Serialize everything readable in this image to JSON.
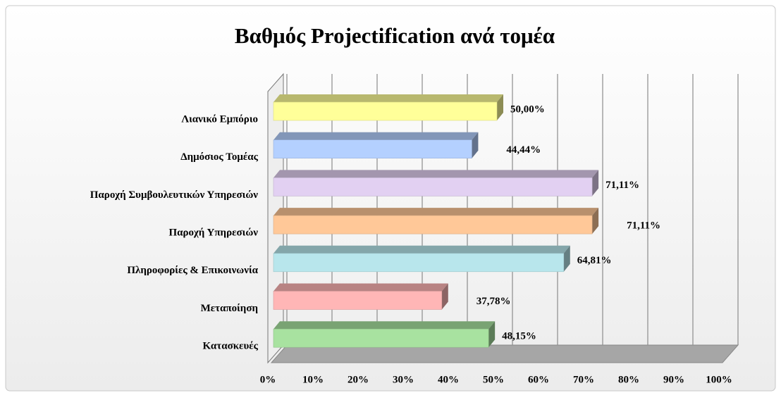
{
  "chart_data": {
    "type": "bar3d",
    "title": "Βαθμός Projectification ανά τομέα",
    "categories": [
      "Λιανικό Εμπόριο",
      "Δημόσιος Τομέας",
      "Παροχή Συμβουλευτικών Υπηρεσιών",
      "Παροχή Υπηρεσιών",
      "Πληροφορίες & Επικοινωνία",
      "Μεταποίηση",
      "Κατασκευές"
    ],
    "values": [
      50.0,
      44.44,
      71.11,
      71.11,
      64.81,
      37.78,
      48.15
    ],
    "value_labels": [
      "50,00%",
      "44,44%",
      "71,11%",
      "71,11%",
      "64,81%",
      "37,78%",
      "48,15%"
    ],
    "colors": [
      "#ffff99",
      "#b4d0ff",
      "#e2d0f2",
      "#ffc898",
      "#b8e6ec",
      "#ffb6b6",
      "#a8e2a0"
    ],
    "xlim": [
      0,
      100
    ],
    "xticks": [
      {
        "value": 0,
        "label": "0%"
      },
      {
        "value": 10,
        "label": "10%"
      },
      {
        "value": 20,
        "label": "20%"
      },
      {
        "value": 30,
        "label": "30%"
      },
      {
        "value": 40,
        "label": "40%"
      },
      {
        "value": 50,
        "label": "50%"
      },
      {
        "value": 60,
        "label": "60%"
      },
      {
        "value": 70,
        "label": "70%"
      },
      {
        "value": 80,
        "label": "80%"
      },
      {
        "value": 90,
        "label": "90%"
      },
      {
        "value": 100,
        "label": "100%"
      }
    ],
    "grid": true
  }
}
